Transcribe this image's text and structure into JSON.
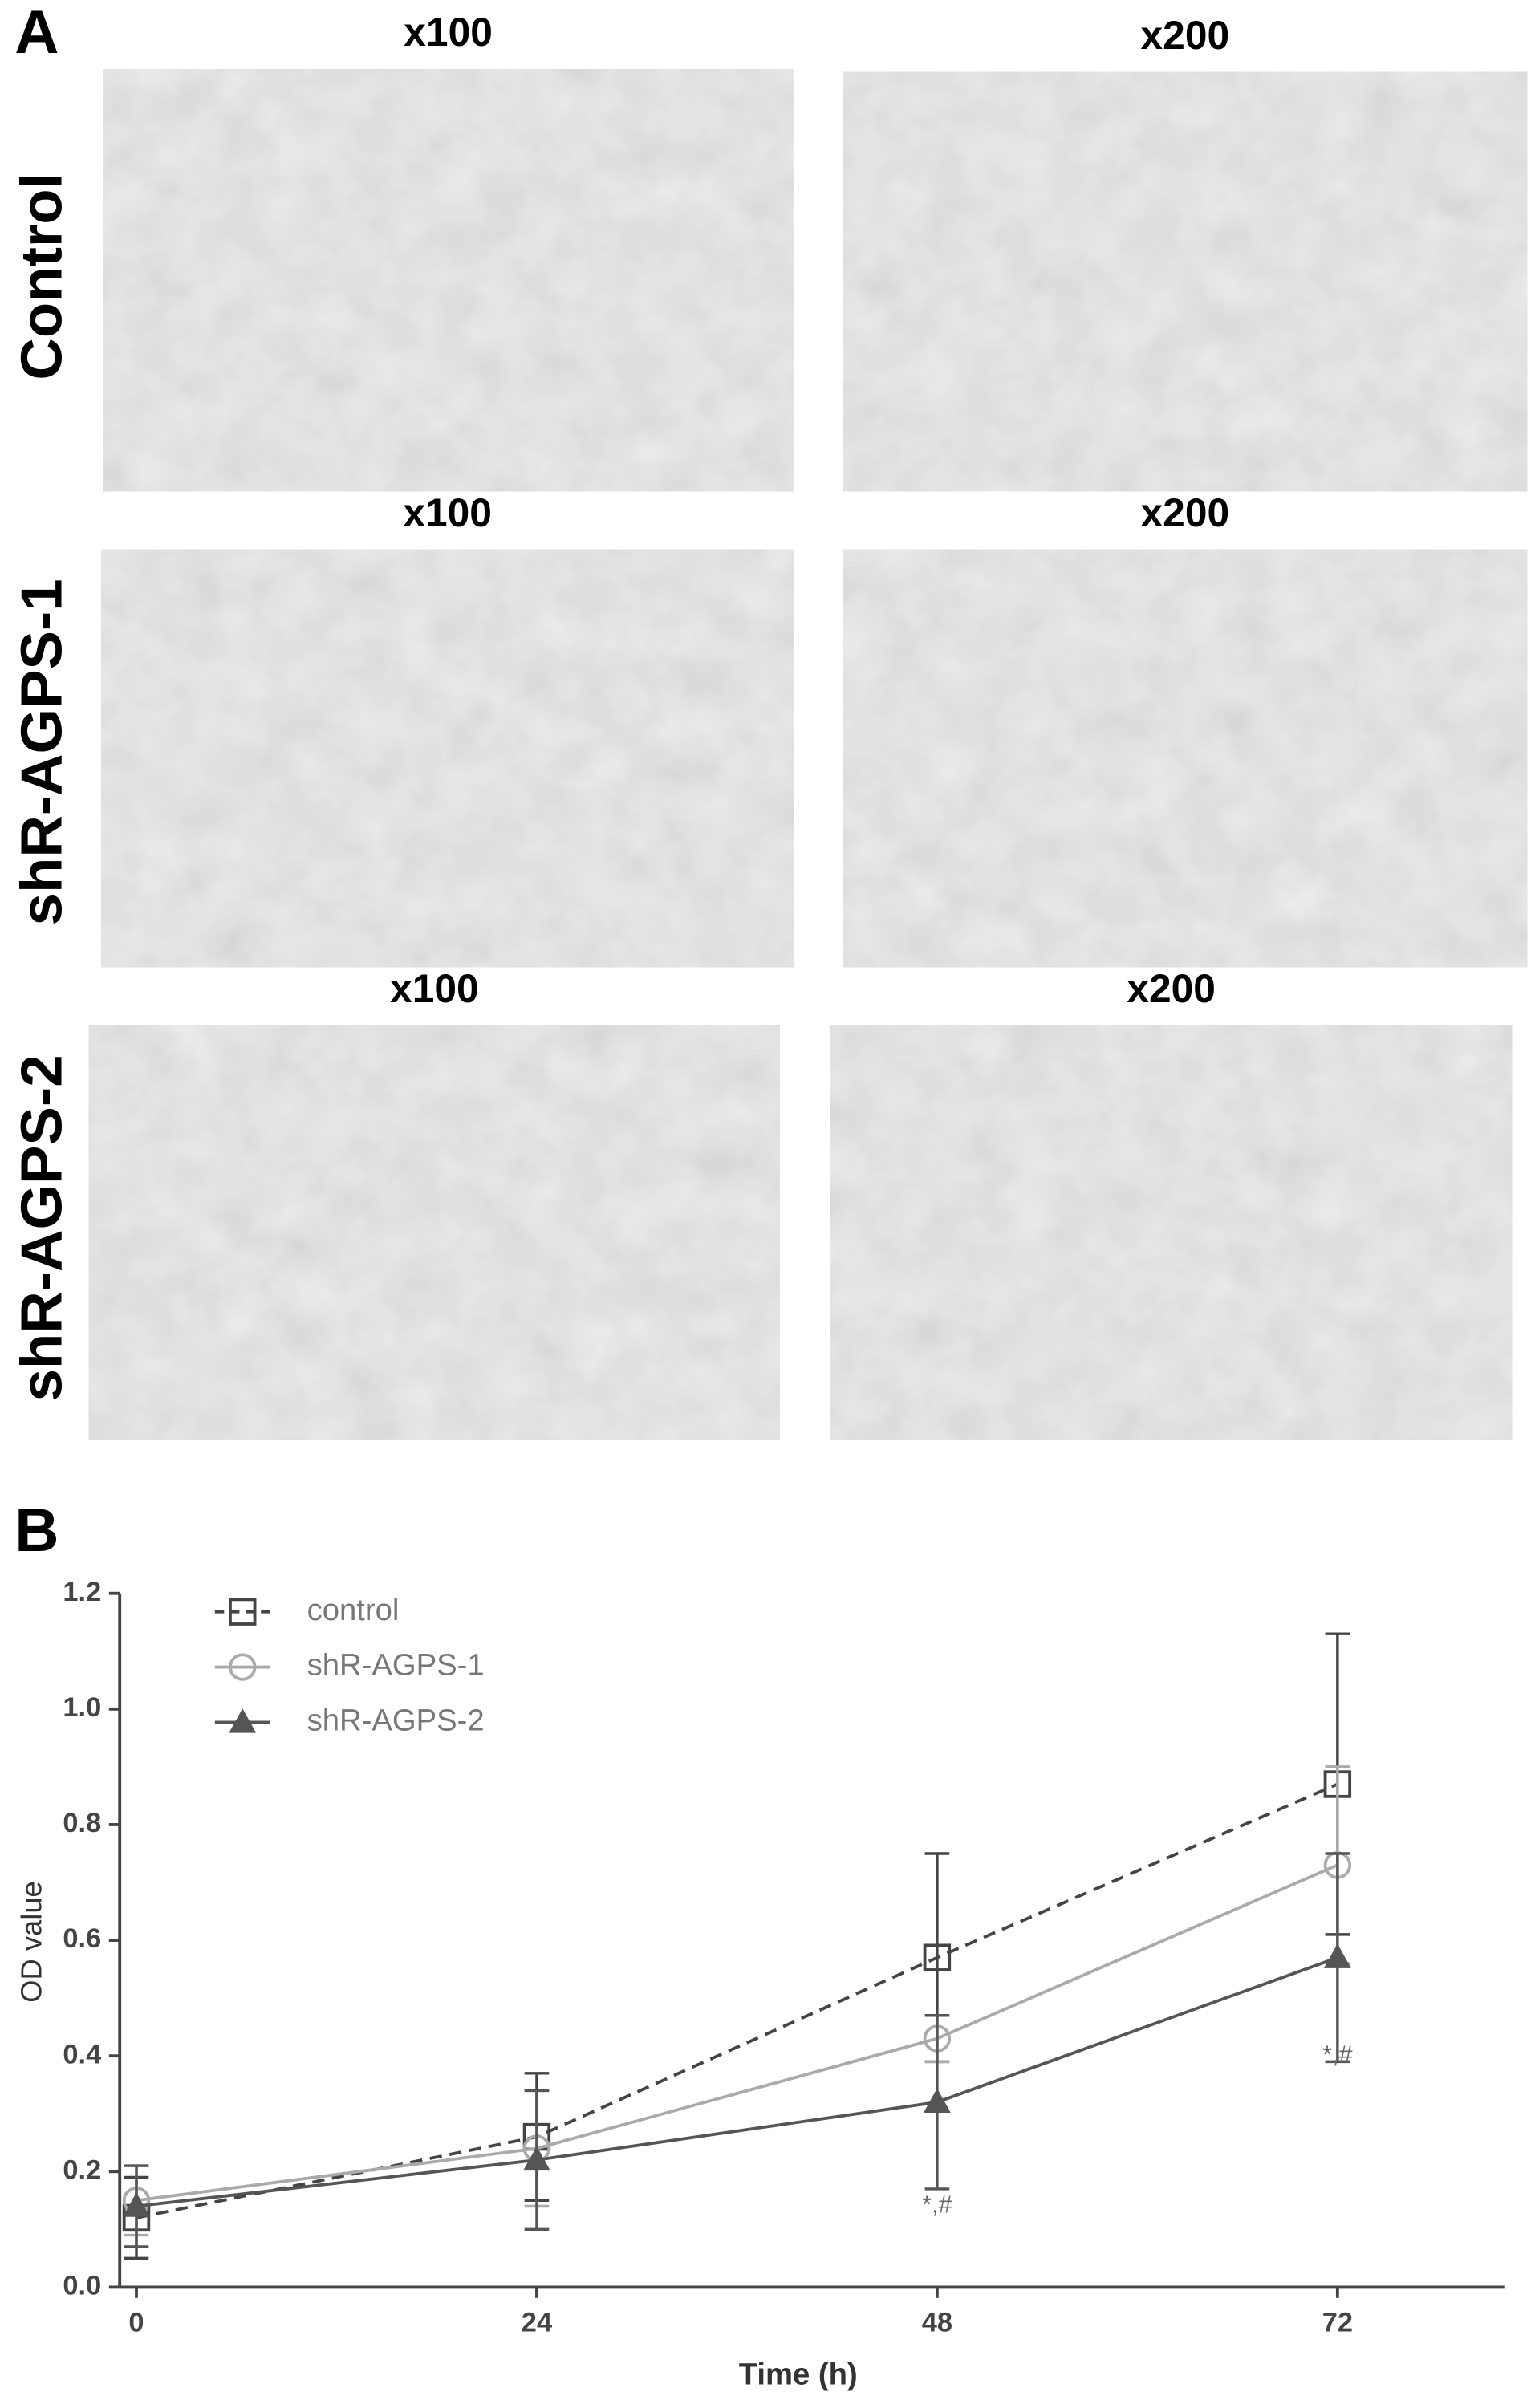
{
  "panel_a": {
    "label": "A",
    "rows": [
      {
        "label": "Control",
        "magnifications": [
          "x100",
          "x200"
        ]
      },
      {
        "label": "shR-AGPS-1",
        "magnifications": [
          "x100",
          "x200"
        ]
      },
      {
        "label": "shR-AGPS-2",
        "magnifications": [
          "x100",
          "x200"
        ]
      }
    ]
  },
  "chart_data": {
    "type": "line",
    "panel_label": "B",
    "x_label": "Time (h)",
    "y_label": "OD value",
    "x": [
      0,
      24,
      48,
      72
    ],
    "xlim": [
      -1,
      82
    ],
    "xticks": [
      0,
      24,
      48,
      72
    ],
    "ylim": [
      0,
      1.2
    ],
    "yticks": [
      {
        "value": 0,
        "label": "0.0"
      },
      0.2,
      0.4,
      0.6,
      0.8,
      {
        "value": 1,
        "label": "1.0"
      },
      1.2
    ],
    "legend": "upper left",
    "grid": false,
    "series": [
      {
        "name": "control",
        "color": "#444444",
        "marker": "square",
        "linestyle": "dashed",
        "values": [
          0.12,
          0.26,
          0.57,
          0.87
        ],
        "errors": [
          0.07,
          0.11,
          0.18,
          0.26
        ]
      },
      {
        "name": "shR-AGPS-1",
        "color": "#aaaaaa",
        "marker": "circle",
        "linestyle": "solid",
        "values": [
          0.15,
          0.24,
          0.43,
          0.73
        ],
        "errors": [
          0.06,
          0.1,
          0.04,
          0.17
        ]
      },
      {
        "name": "shR-AGPS-2",
        "color": "#555555",
        "marker": "triangle",
        "linestyle": "solid",
        "values": [
          0.14,
          0.22,
          0.32,
          0.57
        ],
        "errors": [
          0.07,
          0.12,
          0.15,
          0.18
        ]
      }
    ],
    "annotations": [
      {
        "text": "*,#",
        "x": 48,
        "y": 0.14
      },
      {
        "text": "*,#",
        "x": 72,
        "y": 0.4
      }
    ]
  }
}
